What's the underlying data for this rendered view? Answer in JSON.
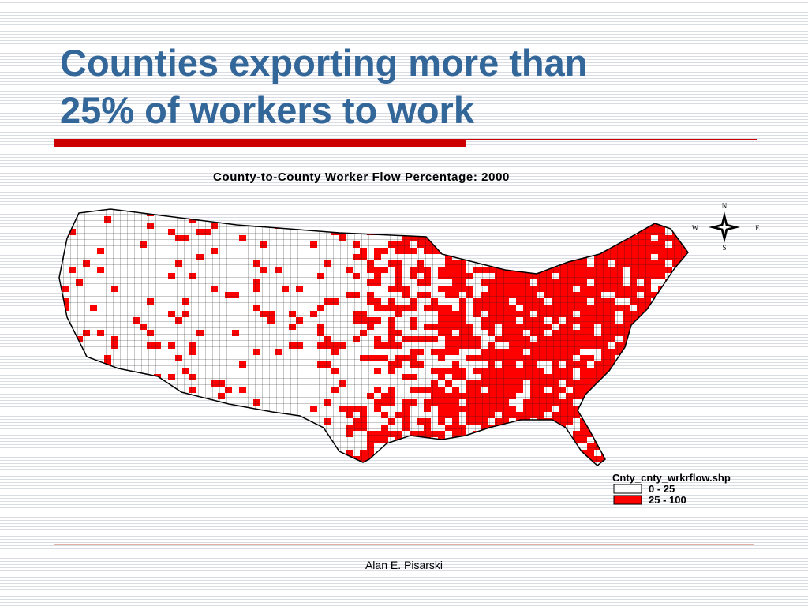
{
  "title_lines": [
    "Counties exporting more than",
    "25% of workers to work"
  ],
  "map": {
    "title": "County-to-County Worker Flow Percentage: 2000",
    "compass": {
      "north": "N",
      "south": "S",
      "east": "E",
      "west": "W"
    },
    "legend": {
      "title": "Cnty_cnty_wrkrflow.shp",
      "entries": [
        "0 - 25",
        "25 - 100"
      ]
    }
  },
  "footer": "Alan E. Pisarski"
}
